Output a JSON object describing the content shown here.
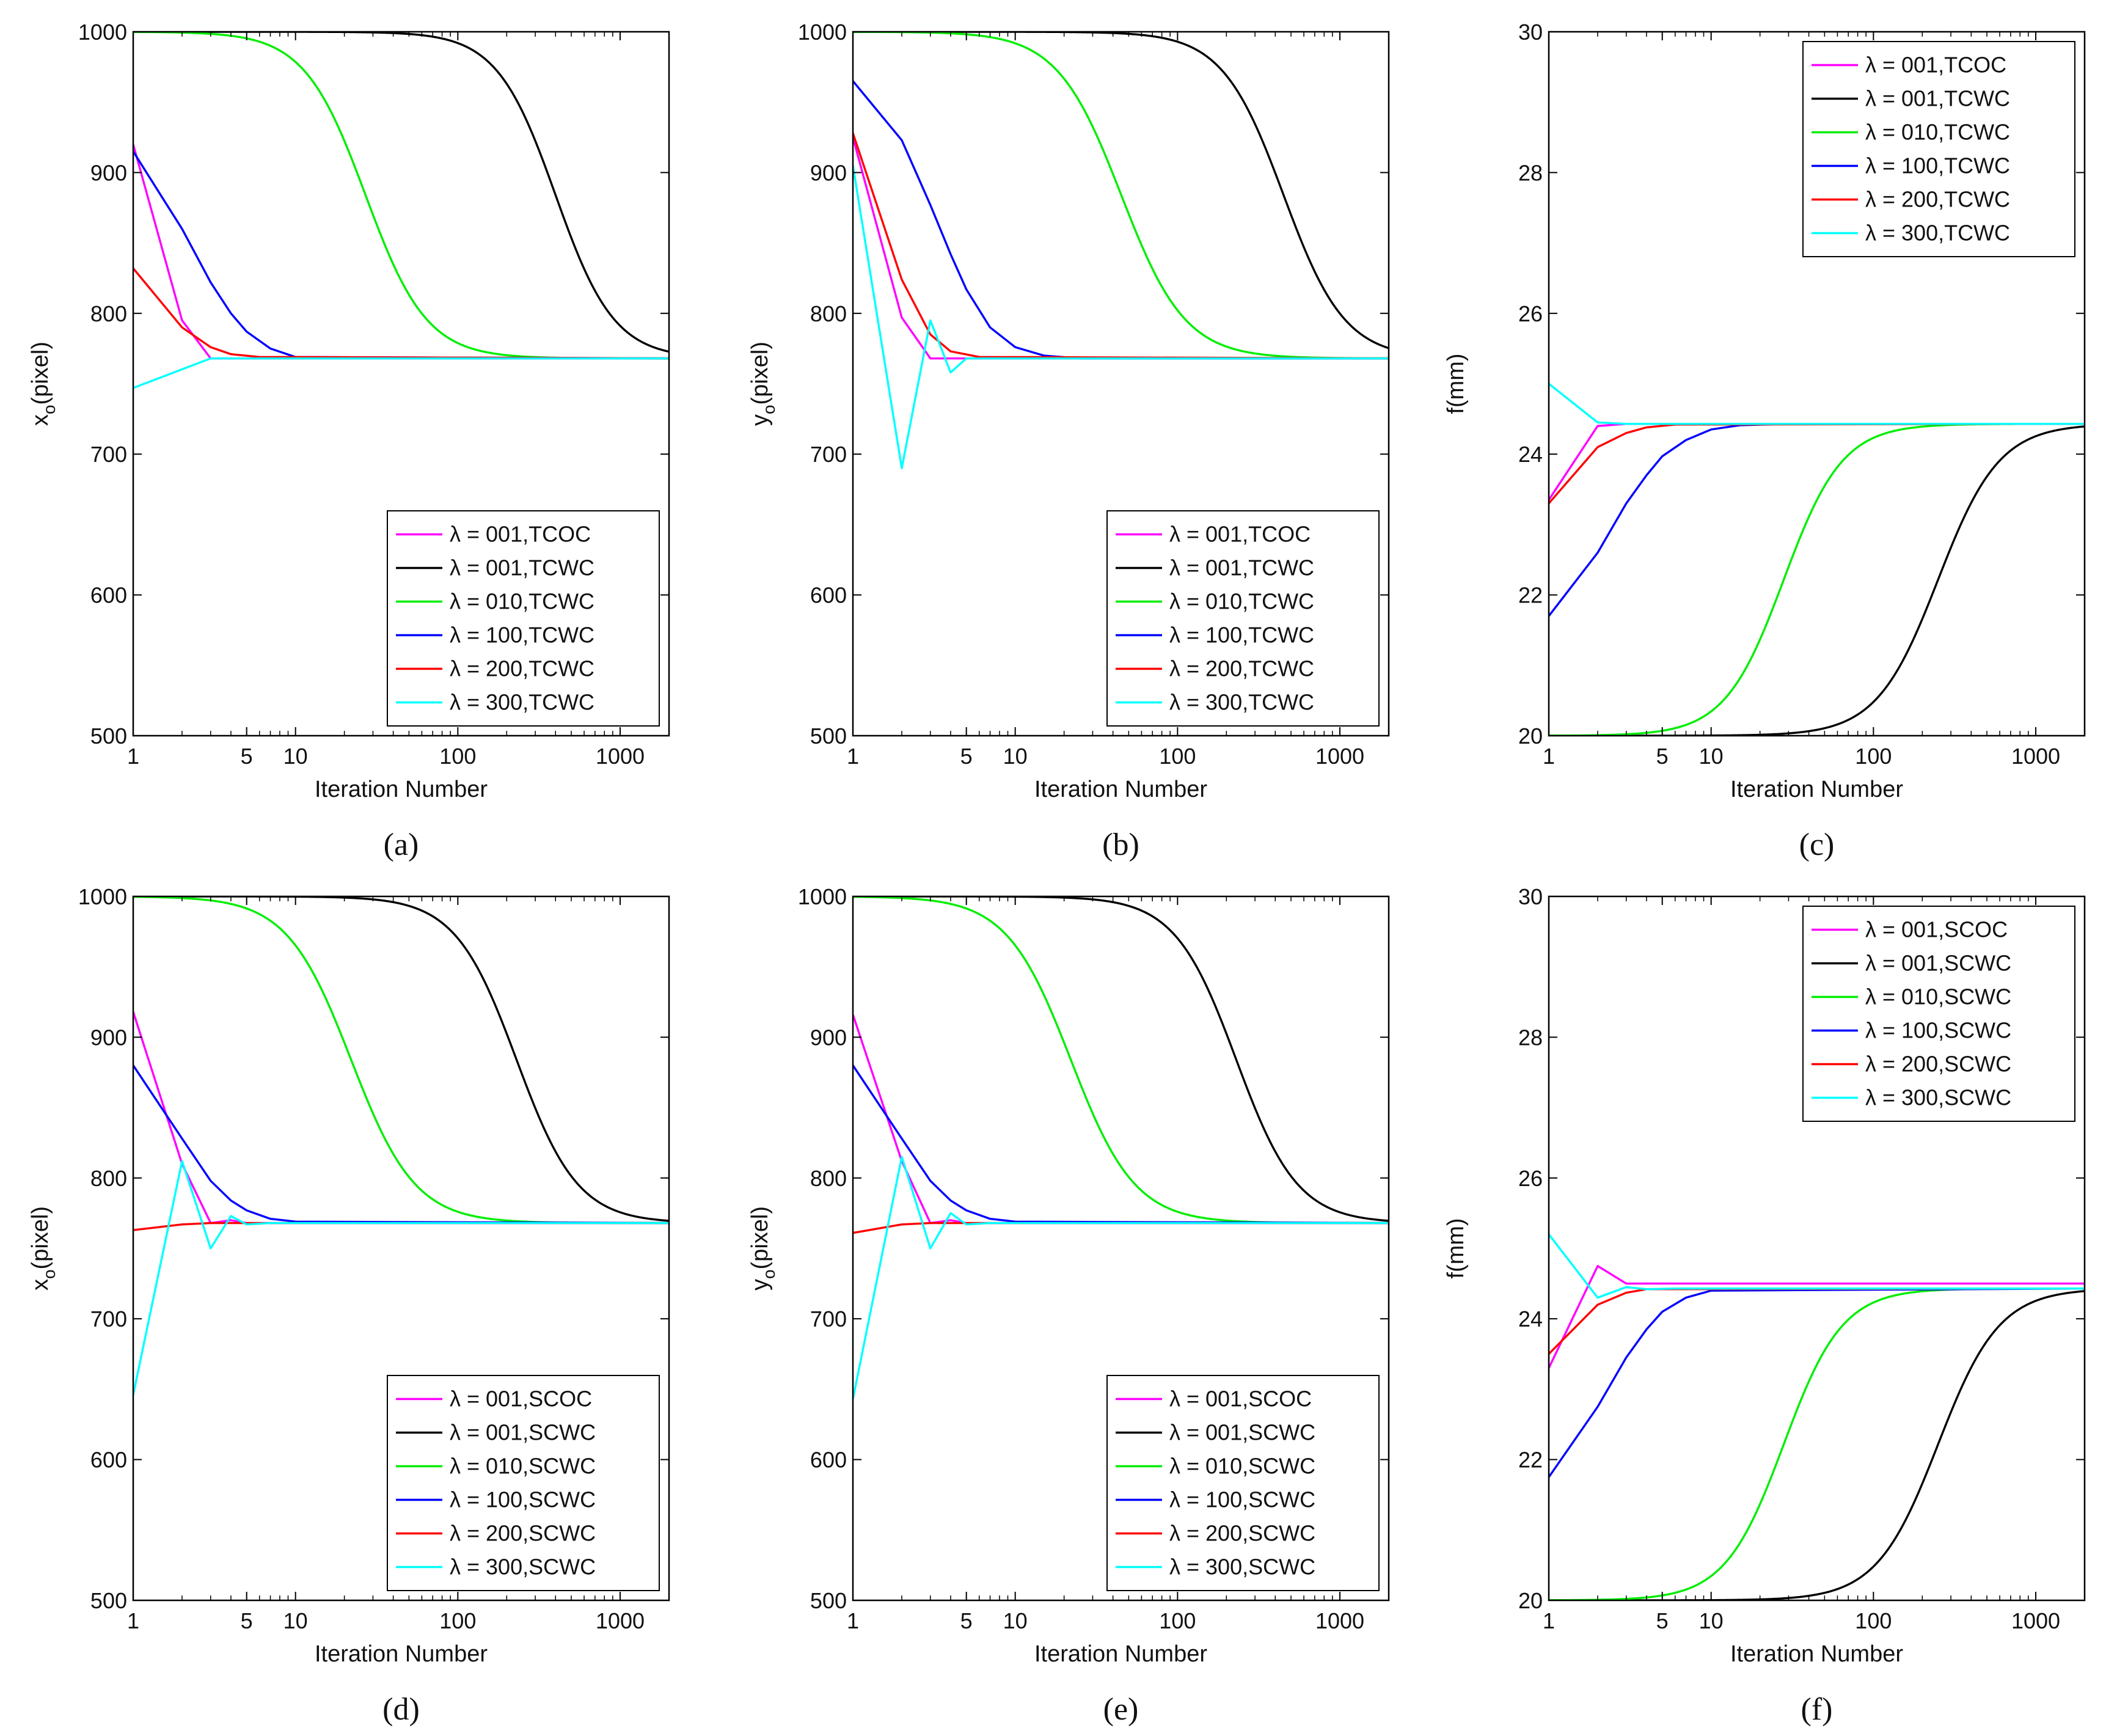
{
  "chart_data": [
    {
      "type": "line",
      "caption": "(a)",
      "xscale": "log",
      "xlabel": "Iteration Number",
      "ylabel": "x",
      "ylabel_sub": "o",
      "ylabel_suffix": "(pixel)",
      "xlim": [
        1,
        2000
      ],
      "ylim": [
        500,
        1000
      ],
      "xticks": [
        1,
        5,
        10,
        100,
        1000
      ],
      "xtick_labels": [
        "1",
        "5",
        "10",
        "100",
        "1000"
      ],
      "yticks": [
        500,
        600,
        700,
        800,
        900,
        1000
      ],
      "ytick_labels": [
        "500",
        "600",
        "700",
        "800",
        "900",
        "1000"
      ],
      "legend_position": "bottom-right",
      "series": [
        {
          "name": "λ = 001,TCOC",
          "color": "#ff00ff",
          "points": [
            [
              1,
              920
            ],
            [
              2,
              795
            ],
            [
              3,
              768
            ],
            [
              2000,
              768
            ]
          ]
        },
        {
          "name": "λ = 001,TCWC",
          "color": "#000000",
          "sigmoid": {
            "start": 1000,
            "end": 768,
            "mid": 400,
            "width": 2.4
          }
        },
        {
          "name": "λ = 010,TCWC",
          "color": "#00ee00",
          "sigmoid": {
            "start": 1000,
            "end": 768,
            "mid": 27,
            "width": 2.3
          }
        },
        {
          "name": "λ = 100,TCWC",
          "color": "#0000ff",
          "points": [
            [
              1,
              915
            ],
            [
              2,
              860
            ],
            [
              3,
              822
            ],
            [
              4,
              800
            ],
            [
              5,
              787
            ],
            [
              7,
              775
            ],
            [
              10,
              769
            ],
            [
              2000,
              768
            ]
          ]
        },
        {
          "name": "λ = 200,TCWC",
          "color": "#ff0000",
          "points": [
            [
              1,
              832
            ],
            [
              2,
              790
            ],
            [
              3,
              776
            ],
            [
              4,
              771
            ],
            [
              6,
              769
            ],
            [
              2000,
              768
            ]
          ]
        },
        {
          "name": "λ = 300,TCWC",
          "color": "#00ffff",
          "points": [
            [
              1,
              747
            ],
            [
              3,
              768
            ],
            [
              2000,
              768
            ]
          ]
        }
      ]
    },
    {
      "type": "line",
      "caption": "(b)",
      "xscale": "log",
      "xlabel": "Iteration Number",
      "ylabel": "y",
      "ylabel_sub": "o",
      "ylabel_suffix": "(pixel)",
      "xlim": [
        1,
        2000
      ],
      "ylim": [
        500,
        1000
      ],
      "xticks": [
        1,
        5,
        10,
        100,
        1000
      ],
      "xtick_labels": [
        "1",
        "5",
        "10",
        "100",
        "1000"
      ],
      "yticks": [
        500,
        600,
        700,
        800,
        900,
        1000
      ],
      "ytick_labels": [
        "500",
        "600",
        "700",
        "800",
        "900",
        "1000"
      ],
      "legend_position": "bottom-right",
      "series": [
        {
          "name": "λ = 001,TCOC",
          "color": "#ff00ff",
          "points": [
            [
              1,
              925
            ],
            [
              2,
              797
            ],
            [
              3,
              768
            ],
            [
              4,
              768
            ],
            [
              2000,
              768
            ]
          ]
        },
        {
          "name": "λ = 001,TCWC",
          "color": "#000000",
          "sigmoid": {
            "start": 1000,
            "end": 768,
            "mid": 450,
            "width": 2.3
          }
        },
        {
          "name": "λ = 010,TCWC",
          "color": "#00ee00",
          "sigmoid": {
            "start": 1000,
            "end": 768,
            "mid": 45,
            "width": 2.2
          }
        },
        {
          "name": "λ = 100,TCWC",
          "color": "#0000ff",
          "points": [
            [
              1,
              965
            ],
            [
              2,
              923
            ],
            [
              3,
              877
            ],
            [
              4,
              842
            ],
            [
              5,
              817
            ],
            [
              7,
              790
            ],
            [
              10,
              776
            ],
            [
              15,
              770
            ],
            [
              25,
              768
            ],
            [
              2000,
              768
            ]
          ]
        },
        {
          "name": "λ = 200,TCWC",
          "color": "#ff0000",
          "points": [
            [
              1,
              928
            ],
            [
              2,
              824
            ],
            [
              3,
              785
            ],
            [
              4,
              773
            ],
            [
              6,
              769
            ],
            [
              2000,
              768
            ]
          ]
        },
        {
          "name": "λ = 300,TCWC",
          "color": "#00ffff",
          "points": [
            [
              1,
              905
            ],
            [
              2,
              690
            ],
            [
              3,
              795
            ],
            [
              4,
              758
            ],
            [
              5,
              768
            ],
            [
              2000,
              768
            ]
          ]
        }
      ]
    },
    {
      "type": "line",
      "caption": "(c)",
      "xscale": "log",
      "xlabel": "Iteration Number",
      "ylabel": "f(mm)",
      "ylabel_sub": "",
      "ylabel_suffix": "",
      "xlim": [
        1,
        2000
      ],
      "ylim": [
        20,
        30
      ],
      "xticks": [
        1,
        5,
        10,
        100,
        1000
      ],
      "xtick_labels": [
        "1",
        "5",
        "10",
        "100",
        "1000"
      ],
      "yticks": [
        20,
        22,
        24,
        26,
        28,
        30
      ],
      "ytick_labels": [
        "20",
        "22",
        "24",
        "26",
        "28",
        "30"
      ],
      "legend_position": "top-right",
      "series": [
        {
          "name": "λ = 001,TCOC",
          "color": "#ff00ff",
          "points": [
            [
              1,
              23.35
            ],
            [
              2,
              24.4
            ],
            [
              3,
              24.43
            ],
            [
              2000,
              24.43
            ]
          ]
        },
        {
          "name": "λ = 001,TCWC",
          "color": "#000000",
          "sigmoid": {
            "start": 20,
            "end": 24.43,
            "mid": 250,
            "width": 2.3
          }
        },
        {
          "name": "λ = 010,TCWC",
          "color": "#00ee00",
          "sigmoid": {
            "start": 20,
            "end": 24.43,
            "mid": 28,
            "width": 2.4
          }
        },
        {
          "name": "λ = 100,TCWC",
          "color": "#0000ff",
          "points": [
            [
              1,
              21.7
            ],
            [
              2,
              22.6
            ],
            [
              3,
              23.3
            ],
            [
              4,
              23.7
            ],
            [
              5,
              23.97
            ],
            [
              7,
              24.2
            ],
            [
              10,
              24.35
            ],
            [
              15,
              24.41
            ],
            [
              30,
              24.43
            ],
            [
              2000,
              24.43
            ]
          ]
        },
        {
          "name": "λ = 200,TCWC",
          "color": "#ff0000",
          "points": [
            [
              1,
              23.3
            ],
            [
              2,
              24.1
            ],
            [
              3,
              24.3
            ],
            [
              4,
              24.38
            ],
            [
              6,
              24.42
            ],
            [
              2000,
              24.43
            ]
          ]
        },
        {
          "name": "λ = 300,TCWC",
          "color": "#00ffff",
          "points": [
            [
              1,
              25.0
            ],
            [
              2,
              24.45
            ],
            [
              3,
              24.43
            ],
            [
              2000,
              24.43
            ]
          ]
        }
      ]
    },
    {
      "type": "line",
      "caption": "(d)",
      "xscale": "log",
      "xlabel": "Iteration Number",
      "ylabel": "x",
      "ylabel_sub": "o",
      "ylabel_suffix": "(pixel)",
      "xlim": [
        1,
        2000
      ],
      "ylim": [
        500,
        1000
      ],
      "xticks": [
        1,
        5,
        10,
        100,
        1000
      ],
      "xtick_labels": [
        "1",
        "5",
        "10",
        "100",
        "1000"
      ],
      "yticks": [
        500,
        600,
        700,
        800,
        900,
        1000
      ],
      "ytick_labels": [
        "500",
        "600",
        "700",
        "800",
        "900",
        "1000"
      ],
      "legend_position": "bottom-right",
      "series": [
        {
          "name": "λ = 001,SCOC",
          "color": "#ff00ff",
          "points": [
            [
              1,
              918
            ],
            [
              2,
              810
            ],
            [
              3,
              768
            ],
            [
              4,
              770
            ],
            [
              5,
              768
            ],
            [
              2000,
              768
            ]
          ]
        },
        {
          "name": "λ = 001,SCWC",
          "color": "#000000",
          "sigmoid": {
            "start": 1000,
            "end": 768,
            "mid": 230,
            "width": 2.3
          }
        },
        {
          "name": "λ = 010,SCWC",
          "color": "#00ee00",
          "sigmoid": {
            "start": 1000,
            "end": 768,
            "mid": 22,
            "width": 2.2
          }
        },
        {
          "name": "λ = 100,SCWC",
          "color": "#0000ff",
          "points": [
            [
              1,
              880
            ],
            [
              2,
              828
            ],
            [
              3,
              798
            ],
            [
              4,
              784
            ],
            [
              5,
              777
            ],
            [
              7,
              771
            ],
            [
              10,
              769
            ],
            [
              2000,
              768
            ]
          ]
        },
        {
          "name": "λ = 200,SCWC",
          "color": "#ff0000",
          "points": [
            [
              1,
              763
            ],
            [
              2,
              767
            ],
            [
              3,
              768
            ],
            [
              2000,
              768
            ]
          ]
        },
        {
          "name": "λ = 300,SCWC",
          "color": "#00ffff",
          "points": [
            [
              1,
              646
            ],
            [
              2,
              812
            ],
            [
              3,
              750
            ],
            [
              4,
              773
            ],
            [
              5,
              767
            ],
            [
              7,
              768
            ],
            [
              2000,
              768
            ]
          ]
        }
      ]
    },
    {
      "type": "line",
      "caption": "(e)",
      "xscale": "log",
      "xlabel": "Iteration Number",
      "ylabel": "y",
      "ylabel_sub": "o",
      "ylabel_suffix": "(pixel)",
      "xlim": [
        1,
        2000
      ],
      "ylim": [
        500,
        1000
      ],
      "xticks": [
        1,
        5,
        10,
        100,
        1000
      ],
      "xtick_labels": [
        "1",
        "5",
        "10",
        "100",
        "1000"
      ],
      "yticks": [
        500,
        600,
        700,
        800,
        900,
        1000
      ],
      "ytick_labels": [
        "500",
        "600",
        "700",
        "800",
        "900",
        "1000"
      ],
      "legend_position": "bottom-right",
      "series": [
        {
          "name": "λ = 001,SCOC",
          "color": "#ff00ff",
          "points": [
            [
              1,
              916
            ],
            [
              2,
              812
            ],
            [
              3,
              768
            ],
            [
              4,
              770
            ],
            [
              5,
              768
            ],
            [
              2000,
              768
            ]
          ]
        },
        {
          "name": "λ = 001,SCWC",
          "color": "#000000",
          "sigmoid": {
            "start": 1000,
            "end": 768,
            "mid": 230,
            "width": 2.3
          }
        },
        {
          "name": "λ = 010,SCWC",
          "color": "#00ee00",
          "sigmoid": {
            "start": 1000,
            "end": 768,
            "mid": 22,
            "width": 2.2
          }
        },
        {
          "name": "λ = 100,SCWC",
          "color": "#0000ff",
          "points": [
            [
              1,
              880
            ],
            [
              2,
              828
            ],
            [
              3,
              798
            ],
            [
              4,
              784
            ],
            [
              5,
              777
            ],
            [
              7,
              771
            ],
            [
              10,
              769
            ],
            [
              2000,
              768
            ]
          ]
        },
        {
          "name": "λ = 200,SCWC",
          "color": "#ff0000",
          "points": [
            [
              1,
              761
            ],
            [
              2,
              767
            ],
            [
              3,
              768
            ],
            [
              2000,
              768
            ]
          ]
        },
        {
          "name": "λ = 300,SCWC",
          "color": "#00ffff",
          "points": [
            [
              1,
              643
            ],
            [
              2,
              815
            ],
            [
              3,
              750
            ],
            [
              4,
              775
            ],
            [
              5,
              767
            ],
            [
              7,
              768
            ],
            [
              2000,
              768
            ]
          ]
        }
      ]
    },
    {
      "type": "line",
      "caption": "(f)",
      "xscale": "log",
      "xlabel": "Iteration Number",
      "ylabel": "f(mm)",
      "ylabel_sub": "",
      "ylabel_suffix": "",
      "xlim": [
        1,
        2000
      ],
      "ylim": [
        20,
        30
      ],
      "xticks": [
        1,
        5,
        10,
        100,
        1000
      ],
      "xtick_labels": [
        "1",
        "5",
        "10",
        "100",
        "1000"
      ],
      "yticks": [
        20,
        22,
        24,
        26,
        28,
        30
      ],
      "ytick_labels": [
        "20",
        "22",
        "24",
        "26",
        "28",
        "30"
      ],
      "legend_position": "top-right",
      "series": [
        {
          "name": "λ = 001,SCOC",
          "color": "#ff00ff",
          "points": [
            [
              1,
              23.3
            ],
            [
              2,
              24.75
            ],
            [
              3,
              24.5
            ],
            [
              4,
              24.5
            ],
            [
              2000,
              24.5
            ]
          ]
        },
        {
          "name": "λ = 001,SCWC",
          "color": "#000000",
          "sigmoid": {
            "start": 20,
            "end": 24.43,
            "mid": 250,
            "width": 2.3
          }
        },
        {
          "name": "λ = 010,SCWC",
          "color": "#00ee00",
          "sigmoid": {
            "start": 20,
            "end": 24.43,
            "mid": 28,
            "width": 2.4
          }
        },
        {
          "name": "λ = 100,SCWC",
          "color": "#0000ff",
          "points": [
            [
              1,
              21.75
            ],
            [
              2,
              22.75
            ],
            [
              3,
              23.45
            ],
            [
              4,
              23.85
            ],
            [
              5,
              24.1
            ],
            [
              7,
              24.3
            ],
            [
              10,
              24.4
            ],
            [
              2000,
              24.43
            ]
          ]
        },
        {
          "name": "λ = 200,SCWC",
          "color": "#ff0000",
          "points": [
            [
              1,
              23.5
            ],
            [
              2,
              24.2
            ],
            [
              3,
              24.37
            ],
            [
              4,
              24.42
            ],
            [
              2000,
              24.43
            ]
          ]
        },
        {
          "name": "λ = 300,SCWC",
          "color": "#00ffff",
          "points": [
            [
              1,
              25.2
            ],
            [
              2,
              24.3
            ],
            [
              3,
              24.45
            ],
            [
              4,
              24.42
            ],
            [
              6,
              24.43
            ],
            [
              2000,
              24.43
            ]
          ]
        }
      ]
    }
  ]
}
